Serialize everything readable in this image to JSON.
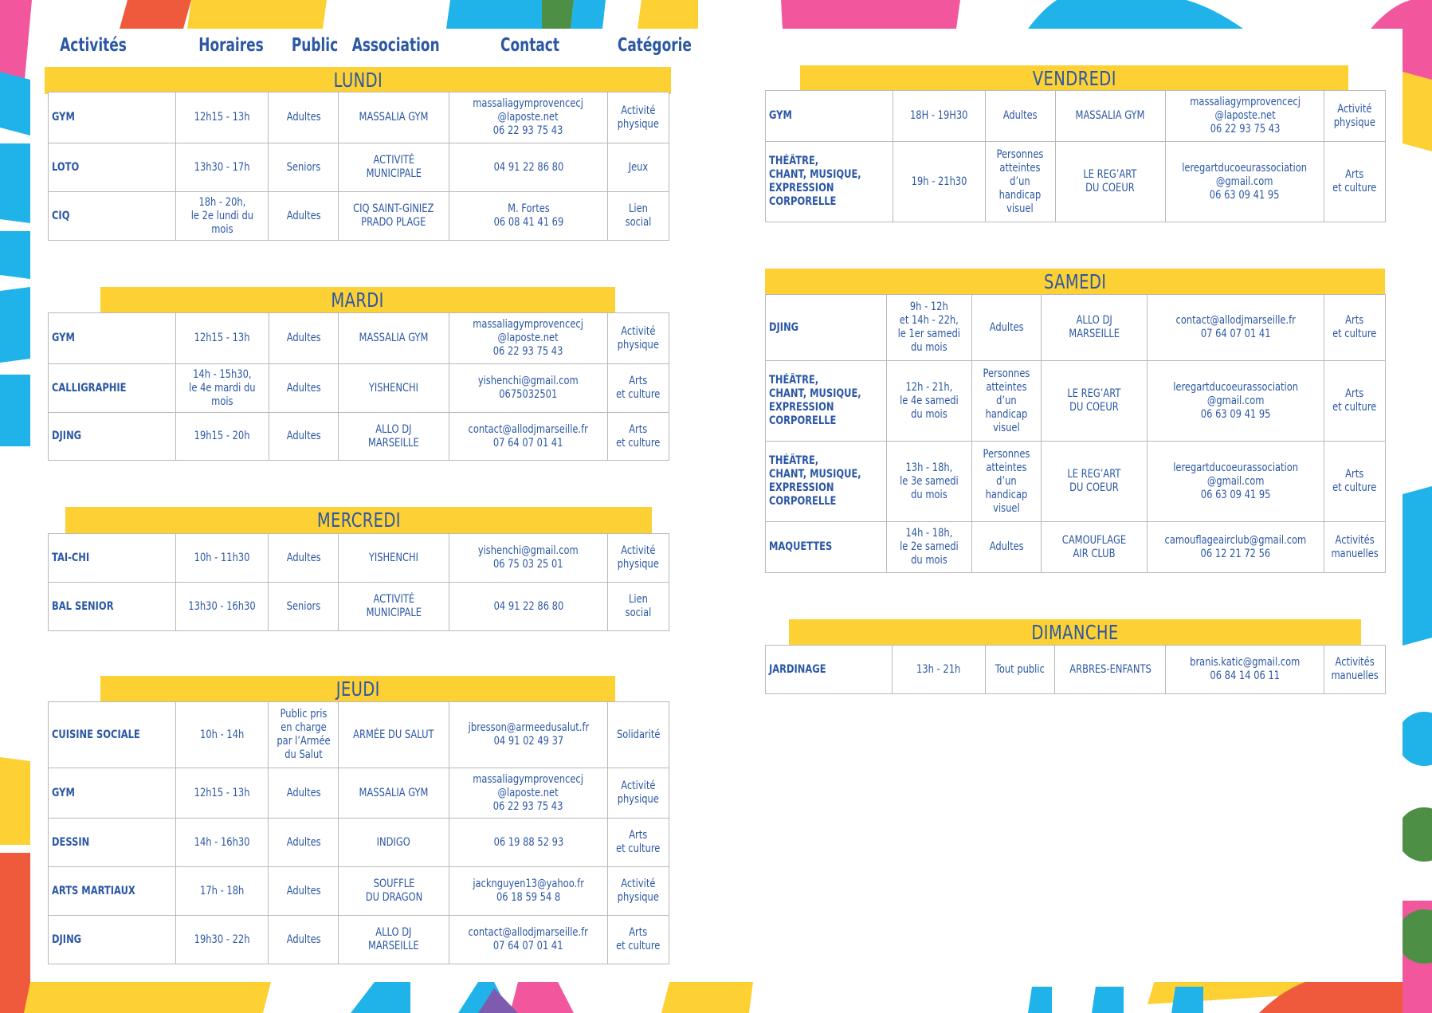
{
  "colors": {
    "blue": "#2b57a4",
    "yellow": "#fdd133",
    "pink": "#f2579e",
    "cyan": "#1fb3e9",
    "green": "#4c8f45",
    "red": "#f05a3c"
  },
  "headers": {
    "activites": "Activités",
    "horaires": "Horaires",
    "public": "Public",
    "association": "Association",
    "contact": "Contact",
    "categorie": "Catégorie"
  },
  "days": {
    "lundi": {
      "label": "LUNDI",
      "rows": [
        [
          "GYM",
          "12h15 - 13h",
          "Adultes",
          "MASSALIA GYM",
          "massaliagymprovencecj\n@laposte.net\n06 22 93 75 43",
          "Activité\nphysique"
        ],
        [
          "LOTO",
          "13h30 - 17h",
          "Seniors",
          "ACTIVITÉ\nMUNICIPALE",
          "04 91 22 86 80",
          "Jeux"
        ],
        [
          "CIQ",
          "18h - 20h,\nle 2e lundi du mois",
          "Adultes",
          "CIQ SAINT-GINIEZ\nPRADO PLAGE",
          "M. Fortes\n06 08 41 41 69",
          "Lien\nsocial"
        ]
      ]
    },
    "mardi": {
      "label": "MARDI",
      "rows": [
        [
          "GYM",
          "12h15 - 13h",
          "Adultes",
          "MASSALIA GYM",
          "massaliagymprovencecj\n@laposte.net\n06 22 93 75 43",
          "Activité\nphysique"
        ],
        [
          "CALLIGRAPHIE",
          "14h - 15h30,\nle 4e mardi du mois",
          "Adultes",
          "YISHENCHI",
          "yishenchi@gmail.com\n0675032501",
          "Arts\net culture"
        ],
        [
          "DJING",
          "19h15 - 20h",
          "Adultes",
          "ALLO DJ MARSEILLE",
          "contact@allodjmarseille.fr\n07 64 07 01 41",
          "Arts\net culture"
        ]
      ]
    },
    "mercredi": {
      "label": "MERCREDI",
      "rows": [
        [
          "TAI-CHI",
          "10h - 11h30",
          "Adultes",
          "YISHENCHI",
          "yishenchi@gmail.com\n06 75 03 25 01",
          "Activité\nphysique"
        ],
        [
          "BAL SENIOR",
          "13h30 - 16h30",
          "Seniors",
          "ACTIVITÉ\nMUNICIPALE",
          "04 91 22 86 80",
          "Lien\nsocial"
        ]
      ]
    },
    "jeudi": {
      "label": "JEUDI",
      "rows": [
        [
          "CUISINE SOCIALE",
          "10h - 14h",
          "Public pris\nen charge\npar l’Armée\ndu Salut",
          "ARMÉE DU SALUT",
          "jbresson@armeedusalut.fr\n04 91 02 49 37",
          "Solidarité"
        ],
        [
          "GYM",
          "12h15 - 13h",
          "Adultes",
          "MASSALIA GYM",
          "massaliagymprovencecj\n@laposte.net\n06 22 93 75 43",
          "Activité\nphysique"
        ],
        [
          "DESSIN",
          "14h - 16h30",
          "Adultes",
          "INDIGO",
          "06 19 88 52 93",
          "Arts\net culture"
        ],
        [
          "ARTS MARTIAUX",
          "17h - 18h",
          "Adultes",
          "SOUFFLE\nDU DRAGON",
          "jacknguyen13@yahoo.fr\n06 18 59 54 8",
          "Activité\nphysique"
        ],
        [
          "DJING",
          "19h30 - 22h",
          "Adultes",
          "ALLO DJ MARSEILLE",
          "contact@allodjmarseille.fr\n07 64 07 01 41",
          "Arts\net culture"
        ]
      ]
    },
    "vendredi": {
      "label": "VENDREDI",
      "rows": [
        [
          "GYM",
          "18H - 19H30",
          "Adultes",
          "MASSALIA GYM",
          "massaliagymprovencecj\n@laposte.net\n06 22 93 75 43",
          "Activité\nphysique"
        ],
        [
          "THÉÂTRE,\nCHANT, MUSIQUE,\nEXPRESSION\nCORPORELLE",
          "19h - 21h30",
          "Personnes\natteintes\nd’un\nhandicap\nvisuel",
          "LE REG’ART\nDU COEUR",
          "leregartducoeurassociation\n@gmail.com\n06 63 09 41 95",
          "Arts\net culture"
        ]
      ]
    },
    "samedi": {
      "label": "SAMEDI",
      "rows": [
        [
          "DJING",
          "9h - 12h\net 14h - 22h,\nle 1er samedi\ndu mois",
          "Adultes",
          "ALLO DJ MARSEILLE",
          "contact@allodjmarseille.fr\n07 64 07 01 41",
          "Arts\net culture"
        ],
        [
          "THÉÂTRE,\nCHANT, MUSIQUE,\nEXPRESSION\nCORPORELLE",
          "12h - 21h,\nle 4e samedi\ndu mois",
          "Personnes\natteintes\nd’un\nhandicap\nvisuel",
          "LE REG’ART\nDU COEUR",
          "leregartducoeurassociation\n@gmail.com\n06 63 09 41 95",
          "Arts\net culture"
        ],
        [
          "THÉÂTRE,\nCHANT, MUSIQUE,\nEXPRESSION\nCORPORELLE",
          "13h - 18h,\nle 3e samedi\ndu mois",
          "Personnes\natteintes\nd’un\nhandicap\nvisuel",
          "LE REG’ART\nDU COEUR",
          "leregartducoeurassociation\n@gmail.com\n06 63 09 41 95",
          "Arts\net culture"
        ],
        [
          "MAQUETTES",
          "14h - 18h,\nle 2e samedi\ndu mois",
          "Adultes",
          "CAMOUFLAGE\nAIR CLUB",
          "camouflageairclub@gmail.com\n06 12 21 72 56",
          "Activités\nmanuelles"
        ]
      ]
    },
    "dimanche": {
      "label": "DIMANCHE",
      "rows": [
        [
          "JARDINAGE",
          "13h - 21h",
          "Tout public",
          "ARBRES-ENFANTS",
          "branis.katic@gmail.com\n06 84 14 06 11",
          "Activités\nmanuelles"
        ]
      ]
    }
  }
}
